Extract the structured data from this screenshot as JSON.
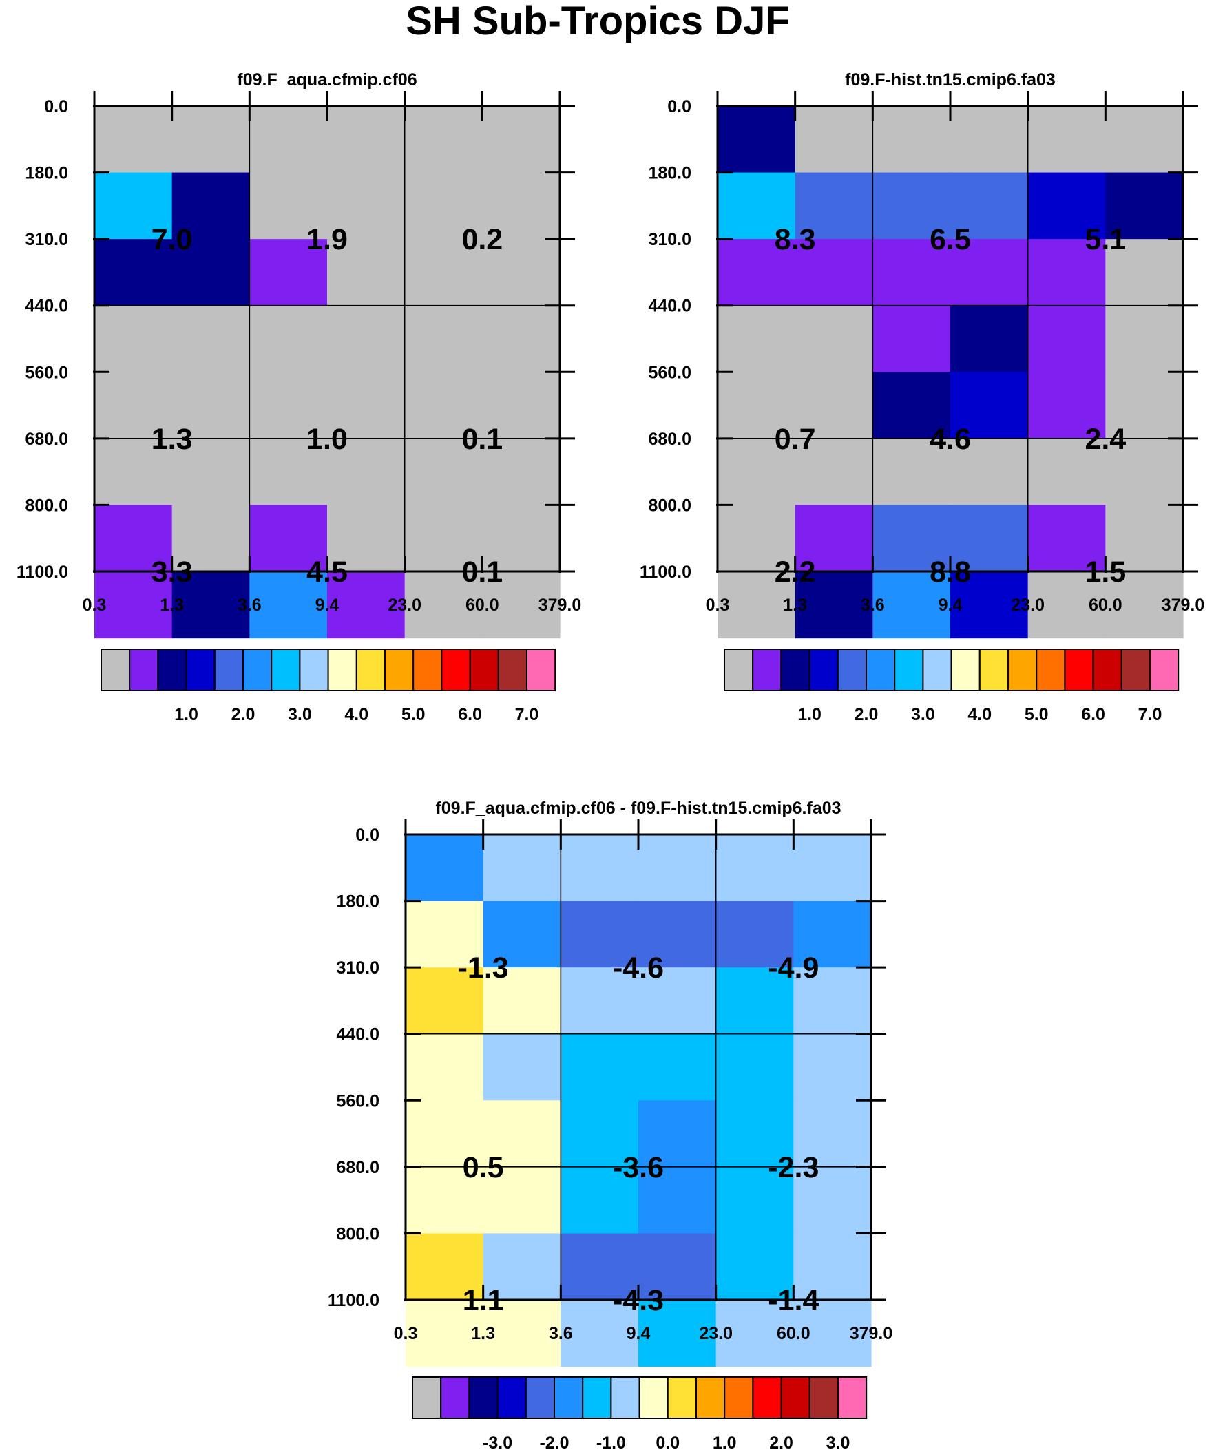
{
  "figure_title": "SH Sub-Tropics DJF",
  "colors": {
    "palette": [
      "#c0c0c0",
      "#8020f0",
      "#00008b",
      "#0000cd",
      "#4169e1",
      "#1e90ff",
      "#00bfff",
      "#a0d0ff",
      "#ffffc8",
      "#ffe135",
      "#ffa500",
      "#ff7000",
      "#ff0000",
      "#cd0000",
      "#a52a2a",
      "#ff69b4"
    ]
  },
  "chart_data": [
    {
      "type": "heatmap",
      "title": "f09.F_aqua.cfmip.cf06",
      "x_tick_labels": [
        "0.3",
        "1.3",
        "3.6",
        "9.4",
        "23.0",
        "60.0",
        "379.0"
      ],
      "y_tick_labels": [
        "0.0",
        "180.0",
        "310.0",
        "440.0",
        "560.0",
        "680.0",
        "800.0",
        "1100.0"
      ],
      "cell_color_index": [
        [
          0,
          0,
          0,
          0,
          0,
          0
        ],
        [
          6,
          2,
          0,
          0,
          0,
          0
        ],
        [
          2,
          2,
          1,
          0,
          0,
          0
        ],
        [
          0,
          0,
          0,
          0,
          0,
          0
        ],
        [
          0,
          0,
          0,
          0,
          0,
          0
        ],
        [
          0,
          0,
          0,
          0,
          0,
          0
        ],
        [
          1,
          0,
          1,
          0,
          0,
          0
        ],
        [
          1,
          2,
          5,
          1,
          0,
          0
        ]
      ],
      "summary_values": [
        [
          "7.0",
          "1.9",
          "0.2"
        ],
        [
          "1.3",
          "1.0",
          "0.1"
        ],
        [
          "3.3",
          "4.5",
          "0.1"
        ]
      ],
      "colorbar_labels": [
        "1.0",
        "2.0",
        "3.0",
        "4.0",
        "5.0",
        "6.0",
        "7.0"
      ]
    },
    {
      "type": "heatmap",
      "title": "f09.F-hist.tn15.cmip6.fa03",
      "x_tick_labels": [
        "0.3",
        "1.3",
        "3.6",
        "9.4",
        "23.0",
        "60.0",
        "379.0"
      ],
      "y_tick_labels": [
        "0.0",
        "180.0",
        "310.0",
        "440.0",
        "560.0",
        "680.0",
        "800.0",
        "1100.0"
      ],
      "cell_color_index": [
        [
          2,
          0,
          0,
          0,
          0,
          0
        ],
        [
          6,
          4,
          4,
          4,
          3,
          2
        ],
        [
          1,
          1,
          1,
          1,
          1,
          0
        ],
        [
          0,
          0,
          1,
          2,
          1,
          0
        ],
        [
          0,
          0,
          2,
          3,
          1,
          0
        ],
        [
          0,
          0,
          0,
          0,
          0,
          0
        ],
        [
          0,
          1,
          4,
          4,
          1,
          0
        ],
        [
          0,
          2,
          5,
          3,
          0,
          0
        ]
      ],
      "summary_values": [
        [
          "8.3",
          "6.5",
          "5.1"
        ],
        [
          "0.7",
          "4.6",
          "2.4"
        ],
        [
          "2.2",
          "8.8",
          "1.5"
        ]
      ],
      "colorbar_labels": [
        "1.0",
        "2.0",
        "3.0",
        "4.0",
        "5.0",
        "6.0",
        "7.0"
      ]
    },
    {
      "type": "heatmap",
      "title": "f09.F_aqua.cfmip.cf06 - f09.F-hist.tn15.cmip6.fa03",
      "x_tick_labels": [
        "0.3",
        "1.3",
        "3.6",
        "9.4",
        "23.0",
        "60.0",
        "379.0"
      ],
      "y_tick_labels": [
        "0.0",
        "180.0",
        "310.0",
        "440.0",
        "560.0",
        "680.0",
        "800.0",
        "1100.0"
      ],
      "cell_color_index": [
        [
          5,
          7,
          7,
          7,
          7,
          7
        ],
        [
          8,
          5,
          4,
          4,
          4,
          5
        ],
        [
          9,
          8,
          7,
          7,
          6,
          7
        ],
        [
          8,
          7,
          6,
          6,
          6,
          7
        ],
        [
          8,
          8,
          6,
          5,
          6,
          7
        ],
        [
          8,
          8,
          6,
          5,
          6,
          7
        ],
        [
          9,
          7,
          4,
          4,
          6,
          7
        ],
        [
          8,
          8,
          7,
          6,
          7,
          7
        ]
      ],
      "summary_values": [
        [
          "-1.3",
          "-4.6",
          "-4.9"
        ],
        [
          "0.5",
          "-3.6",
          "-2.3"
        ],
        [
          "1.1",
          "-4.3",
          "-1.4"
        ]
      ],
      "colorbar_labels": [
        "-3.0",
        "-2.0",
        "-1.0",
        "0.0",
        "1.0",
        "2.0",
        "3.0"
      ]
    }
  ]
}
